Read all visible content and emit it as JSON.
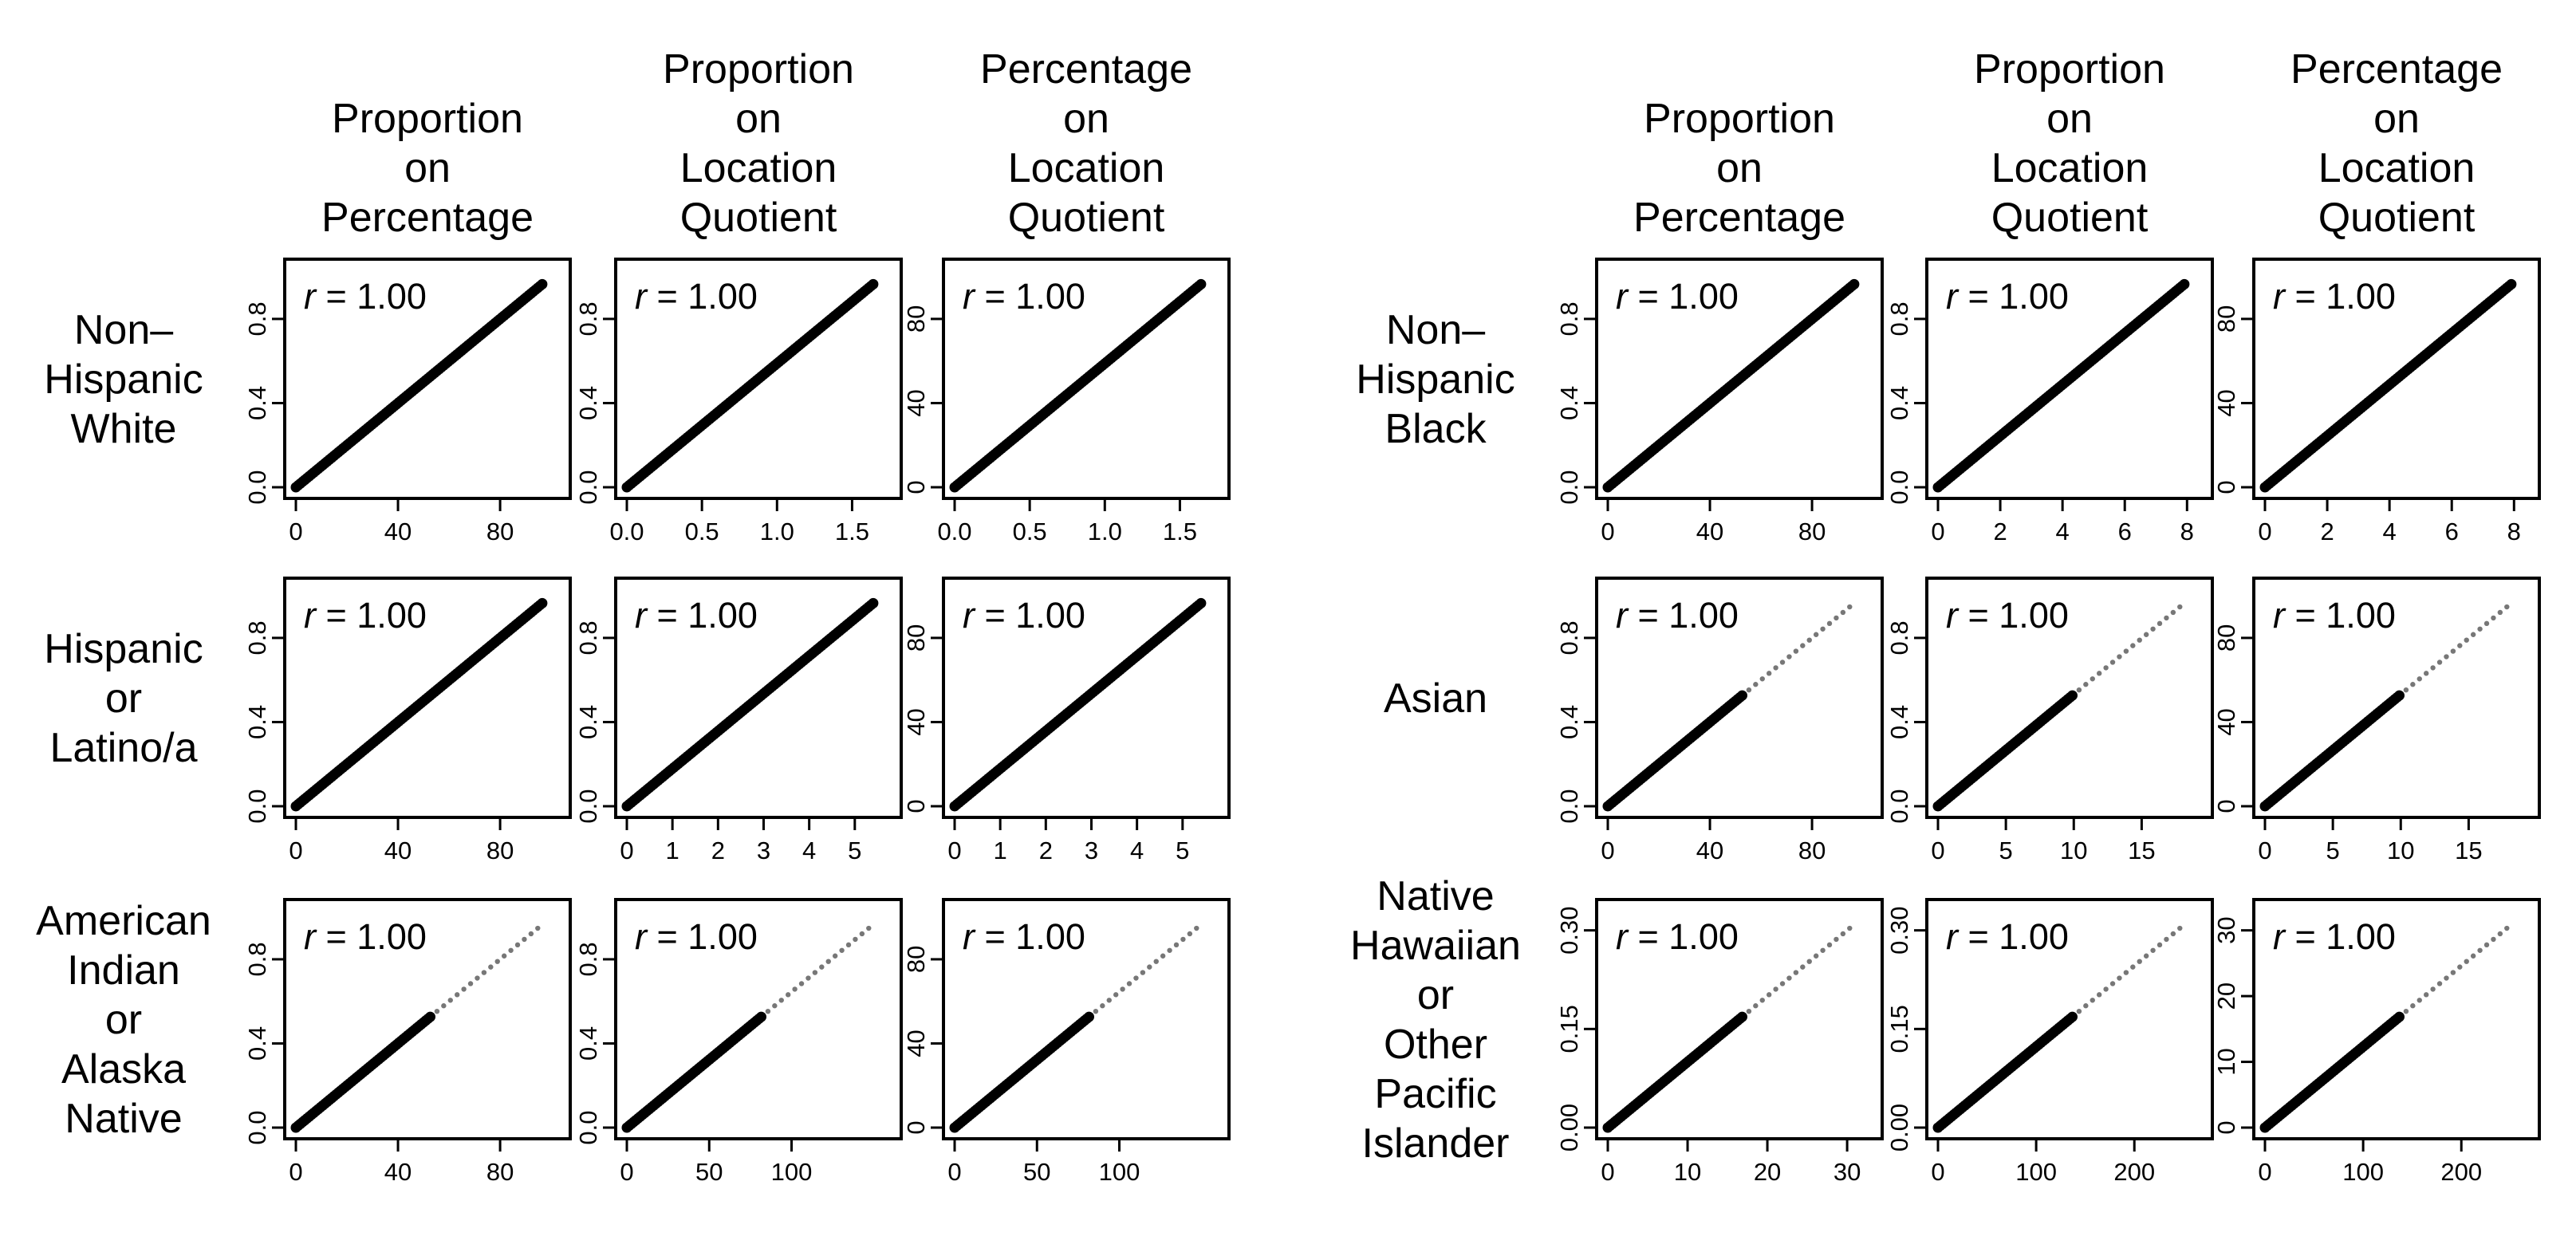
{
  "figure": {
    "column_titles": [
      [
        "Proportion",
        "on",
        "Percentage"
      ],
      [
        "Proportion",
        "on",
        "Location",
        "Quotient"
      ],
      [
        "Percentage",
        "on",
        "Location",
        "Quotient"
      ]
    ],
    "r_label": {
      "letter": "r",
      "rest": " = 1.00"
    }
  },
  "chart_data": {
    "type": "scatter",
    "layout": "two 3x3 small-multiple grids of scatter plots",
    "grids": [
      {
        "rows": [
          {
            "group": [
              "Non–",
              "Hispanic",
              "White"
            ],
            "panels": [
              {
                "column": "Proportion on Percentage",
                "r": "1.00",
                "x_range": [
                  0,
                  100
                ],
                "y_range": [
                  0,
                  1
                ],
                "xticks": [
                  "0",
                  "40",
                  "80"
                ],
                "yticks": [
                  "0.0",
                  "0.4",
                  "0.8"
                ]
              },
              {
                "column": "Proportion on Location Quotient",
                "r": "1.00",
                "x_range": [
                  0,
                  1.7
                ],
                "y_range": [
                  0,
                  1
                ],
                "xticks": [
                  "0.0",
                  "0.5",
                  "1.0",
                  "1.5"
                ],
                "yticks": [
                  "0.0",
                  "0.4",
                  "0.8"
                ]
              },
              {
                "column": "Percentage on Location Quotient",
                "r": "1.00",
                "x_range": [
                  0,
                  1.7
                ],
                "y_range": [
                  0,
                  100
                ],
                "xticks": [
                  "0.0",
                  "0.5",
                  "1.0",
                  "1.5"
                ],
                "yticks": [
                  "0",
                  "40",
                  "80"
                ]
              }
            ]
          },
          {
            "group": [
              "Hispanic",
              "or",
              "Latino/a"
            ],
            "panels": [
              {
                "column": "Proportion on Percentage",
                "r": "1.00",
                "x_range": [
                  0,
                  100
                ],
                "y_range": [
                  0,
                  1
                ],
                "xticks": [
                  "0",
                  "40",
                  "80"
                ],
                "yticks": [
                  "0.0",
                  "0.4",
                  "0.8"
                ]
              },
              {
                "column": "Proportion on Location Quotient",
                "r": "1.00",
                "x_range": [
                  0,
                  5.6
                ],
                "y_range": [
                  0,
                  1
                ],
                "xticks": [
                  "0",
                  "1",
                  "2",
                  "3",
                  "4",
                  "5"
                ],
                "yticks": [
                  "0.0",
                  "0.4",
                  "0.8"
                ]
              },
              {
                "column": "Percentage on Location Quotient",
                "r": "1.00",
                "x_range": [
                  0,
                  5.6
                ],
                "y_range": [
                  0,
                  100
                ],
                "xticks": [
                  "0",
                  "1",
                  "2",
                  "3",
                  "4",
                  "5"
                ],
                "yticks": [
                  "0",
                  "40",
                  "80"
                ]
              }
            ]
          },
          {
            "group": [
              "American",
              "Indian",
              "or",
              "Alaska",
              "Native"
            ],
            "panels": [
              {
                "column": "Proportion on Percentage",
                "r": "1.00",
                "x_range": [
                  0,
                  100
                ],
                "y_range": [
                  0,
                  1
                ],
                "xticks": [
                  "0",
                  "40",
                  "80"
                ],
                "yticks": [
                  "0.0",
                  "0.4",
                  "0.8"
                ],
                "sparse_upper_tail": true
              },
              {
                "column": "Proportion on Location Quotient",
                "r": "1.00",
                "x_range": [
                  0,
                  155
                ],
                "y_range": [
                  0,
                  1
                ],
                "xticks": [
                  "0",
                  "50",
                  "100"
                ],
                "yticks": [
                  "0.0",
                  "0.4",
                  "0.8"
                ],
                "sparse_upper_tail": true
              },
              {
                "column": "Percentage on Location Quotient",
                "r": "1.00",
                "x_range": [
                  0,
                  155
                ],
                "y_range": [
                  0,
                  100
                ],
                "xticks": [
                  "0",
                  "50",
                  "100"
                ],
                "yticks": [
                  "0",
                  "40",
                  "80"
                ],
                "sparse_upper_tail": true
              }
            ]
          }
        ]
      },
      {
        "rows": [
          {
            "group": [
              "Non–",
              "Hispanic",
              "Black"
            ],
            "panels": [
              {
                "column": "Proportion on Percentage",
                "r": "1.00",
                "x_range": [
                  0,
                  100
                ],
                "y_range": [
                  0,
                  1
                ],
                "xticks": [
                  "0",
                  "40",
                  "80"
                ],
                "yticks": [
                  "0.0",
                  "0.4",
                  "0.8"
                ]
              },
              {
                "column": "Proportion on Location Quotient",
                "r": "1.00",
                "x_range": [
                  0,
                  8.2
                ],
                "y_range": [
                  0,
                  1
                ],
                "xticks": [
                  "0",
                  "2",
                  "4",
                  "6",
                  "8"
                ],
                "yticks": [
                  "0.0",
                  "0.4",
                  "0.8"
                ]
              },
              {
                "column": "Percentage on Location Quotient",
                "r": "1.00",
                "x_range": [
                  0,
                  8.2
                ],
                "y_range": [
                  0,
                  100
                ],
                "xticks": [
                  "0",
                  "2",
                  "4",
                  "6",
                  "8"
                ],
                "yticks": [
                  "0",
                  "40",
                  "80"
                ]
              }
            ]
          },
          {
            "group": [
              "Asian"
            ],
            "panels": [
              {
                "column": "Proportion on Percentage",
                "r": "1.00",
                "x_range": [
                  0,
                  100
                ],
                "y_range": [
                  0,
                  1
                ],
                "xticks": [
                  "0",
                  "40",
                  "80"
                ],
                "yticks": [
                  "0.0",
                  "0.4",
                  "0.8"
                ],
                "sparse_upper_tail": true
              },
              {
                "column": "Proportion on Location Quotient",
                "r": "1.00",
                "x_range": [
                  0,
                  18.8
                ],
                "y_range": [
                  0,
                  1
                ],
                "xticks": [
                  "0",
                  "5",
                  "10",
                  "15"
                ],
                "yticks": [
                  "0.0",
                  "0.4",
                  "0.8"
                ],
                "sparse_upper_tail": true
              },
              {
                "column": "Percentage on Location Quotient",
                "r": "1.00",
                "x_range": [
                  0,
                  18.8
                ],
                "y_range": [
                  0,
                  100
                ],
                "xticks": [
                  "0",
                  "5",
                  "10",
                  "15"
                ],
                "yticks": [
                  "0",
                  "40",
                  "80"
                ],
                "sparse_upper_tail": true
              }
            ]
          },
          {
            "group": [
              "Native",
              "Hawaiian",
              "or",
              "Other",
              "Pacific",
              "Islander"
            ],
            "panels": [
              {
                "column": "Proportion on Percentage",
                "r": "1.00",
                "x_range": [
                  0,
                  32
                ],
                "y_range": [
                  0,
                  0.32
                ],
                "xticks": [
                  "0",
                  "10",
                  "20",
                  "30"
                ],
                "yticks": [
                  "0.00",
                  "0.15",
                  "0.30"
                ],
                "sparse_upper_tail": true
              },
              {
                "column": "Proportion on Location Quotient",
                "r": "1.00",
                "x_range": [
                  0,
                  260
                ],
                "y_range": [
                  0,
                  0.32
                ],
                "xticks": [
                  "0",
                  "100",
                  "200"
                ],
                "yticks": [
                  "0.00",
                  "0.15",
                  "0.30"
                ],
                "sparse_upper_tail": true
              },
              {
                "column": "Percentage on Location Quotient",
                "r": "1.00",
                "x_range": [
                  0,
                  260
                ],
                "y_range": [
                  0,
                  32
                ],
                "xticks": [
                  "0",
                  "100",
                  "200"
                ],
                "yticks": [
                  "0",
                  "10",
                  "20",
                  "30"
                ],
                "sparse_upper_tail": true
              }
            ]
          }
        ]
      }
    ]
  }
}
